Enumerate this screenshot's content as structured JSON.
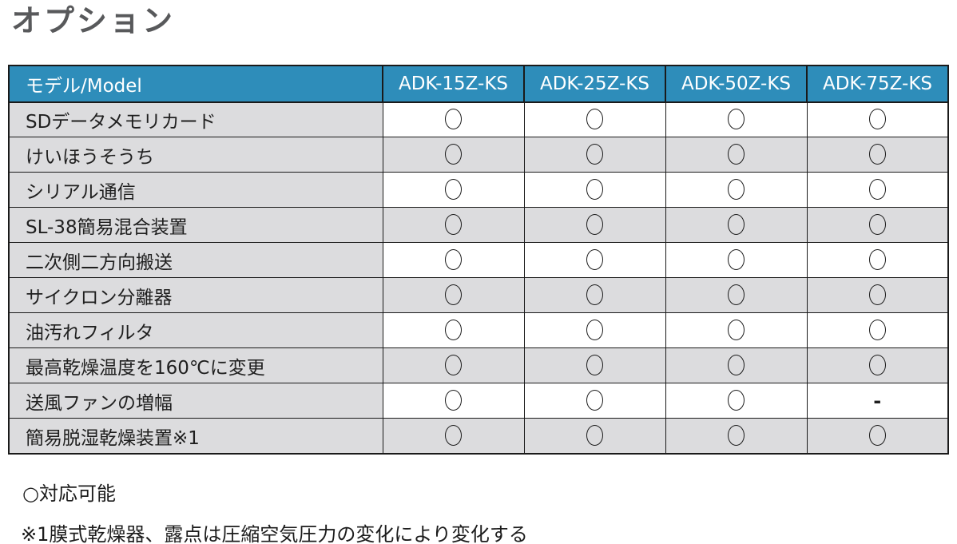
{
  "page": {
    "title": "オプション"
  },
  "table": {
    "columns": [
      "モデル/Model",
      "ADK-15Z-KS",
      "ADK-25Z-KS",
      "ADK-50Z-KS",
      "ADK-75Z-KS"
    ],
    "rows": [
      {
        "label": "SDデータメモリカード",
        "values": [
          "○",
          "○",
          "○",
          "○"
        ]
      },
      {
        "label": "けいほうそうち",
        "values": [
          "○",
          "○",
          "○",
          "○"
        ]
      },
      {
        "label": "シリアル通信",
        "values": [
          "○",
          "○",
          "○",
          "○"
        ]
      },
      {
        "label": "SL-38簡易混合装置",
        "values": [
          "○",
          "○",
          "○",
          "○"
        ]
      },
      {
        "label": "二次側二方向搬送",
        "values": [
          "○",
          "○",
          "○",
          "○"
        ]
      },
      {
        "label": "サイクロン分離器",
        "values": [
          "○",
          "○",
          "○",
          "○"
        ]
      },
      {
        "label": "油汚れフィルタ",
        "values": [
          "○",
          "○",
          "○",
          "○"
        ]
      },
      {
        "label": "最高乾燥温度を160℃に変更",
        "values": [
          "○",
          "○",
          "○",
          "○"
        ]
      },
      {
        "label": "送風ファンの増幅",
        "values": [
          "○",
          "○",
          "○",
          "-"
        ]
      },
      {
        "label": "簡易脱湿乾燥装置※1",
        "values": [
          "○",
          "○",
          "○",
          "○"
        ]
      }
    ],
    "circle_symbol": "○",
    "dash_symbol": "-"
  },
  "legend": {
    "available": "○対応可能",
    "note": "※1膜式乾燥器、露点は圧縮空気圧力の変化により変化する"
  },
  "colors": {
    "header_bg": "#2e8dba",
    "header_text": "#ffffff",
    "row_gray": "#dcdcde",
    "row_white": "#ffffff",
    "border": "#1a1a1a",
    "title_text": "#58595b",
    "body_text": "#1c1c1c"
  }
}
